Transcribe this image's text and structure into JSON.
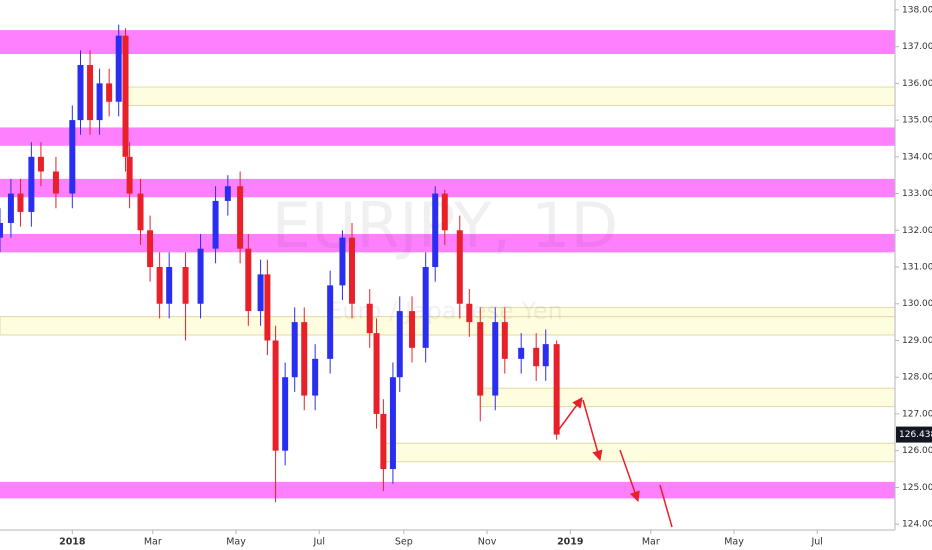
{
  "chart_data": {
    "type": "candlestick",
    "watermark_symbol": "EURJPY, 1D",
    "watermark_name": "Euro / Japanese Yen",
    "up_color": "#2a2ef0",
    "down_color": "#e8202a",
    "x": [
      -53,
      -45,
      -38,
      -30,
      -23,
      -12,
      0,
      6,
      13,
      20,
      27,
      34,
      39,
      42,
      50,
      57,
      64,
      71,
      83,
      94,
      105,
      114,
      123,
      129,
      138,
      143,
      149,
      156,
      163,
      170,
      178,
      189,
      198,
      205,
      218,
      223,
      228,
      235,
      240,
      249,
      259,
      266,
      273,
      284,
      291,
      299,
      310,
      317,
      329,
      340,
      347,
      355
    ],
    "open": [
      131.8,
      132.2,
      133.0,
      132.5,
      134.0,
      133.6,
      133.0,
      135.0,
      136.5,
      135.0,
      136.0,
      135.5,
      137.3,
      134.0,
      133.0,
      132.0,
      131.0,
      130.0,
      131.0,
      130.0,
      131.5,
      132.8,
      133.2,
      131.5,
      129.8,
      130.8,
      129.0,
      126.0,
      128.0,
      129.5,
      127.5,
      128.5,
      130.5,
      131.8,
      130.0,
      129.2,
      127.0,
      125.5,
      128.0,
      129.8,
      128.8,
      131.0,
      133.0,
      132.0,
      130.0,
      129.5,
      127.5,
      129.5,
      128.5,
      128.8,
      128.3,
      128.9
    ],
    "high": [
      132.6,
      133.4,
      133.4,
      134.4,
      134.4,
      134.0,
      135.4,
      136.9,
      136.9,
      136.4,
      136.4,
      137.6,
      137.5,
      134.4,
      133.4,
      132.4,
      131.4,
      131.4,
      131.4,
      131.9,
      133.2,
      133.5,
      133.6,
      131.9,
      131.2,
      131.2,
      129.4,
      128.4,
      129.9,
      129.9,
      128.9,
      130.9,
      132.0,
      132.2,
      130.4,
      129.6,
      127.4,
      128.4,
      130.2,
      130.2,
      131.4,
      133.2,
      133.1,
      132.4,
      130.4,
      129.9,
      129.9,
      129.9,
      129.2,
      129.2,
      129.3,
      129.0
    ],
    "low": [
      131.4,
      131.8,
      132.1,
      132.1,
      133.2,
      132.6,
      132.6,
      134.6,
      134.6,
      134.6,
      135.1,
      135.1,
      133.6,
      132.6,
      131.6,
      130.6,
      129.6,
      129.6,
      129.0,
      129.6,
      131.1,
      132.4,
      131.1,
      129.4,
      129.4,
      128.6,
      124.6,
      125.6,
      127.6,
      127.1,
      127.1,
      128.1,
      130.1,
      129.6,
      128.8,
      126.6,
      124.9,
      125.1,
      127.6,
      128.4,
      128.4,
      130.6,
      131.6,
      129.6,
      129.1,
      126.8,
      127.1,
      128.1,
      128.1,
      127.9,
      127.9,
      126.3
    ],
    "close": [
      132.2,
      133.0,
      132.5,
      134.0,
      133.6,
      133.0,
      135.0,
      136.5,
      135.0,
      136.0,
      135.5,
      137.3,
      134.0,
      133.0,
      132.0,
      131.0,
      130.0,
      131.0,
      130.0,
      131.5,
      132.8,
      133.2,
      131.5,
      129.8,
      130.8,
      129.0,
      126.0,
      128.0,
      129.5,
      127.5,
      128.5,
      130.5,
      131.8,
      130.0,
      129.2,
      127.0,
      125.5,
      128.0,
      129.8,
      128.8,
      131.0,
      133.0,
      132.0,
      130.0,
      129.5,
      127.5,
      129.5,
      128.5,
      128.8,
      128.3,
      128.9,
      126.438
    ],
    "last_price": 126.438,
    "zones": [
      {
        "low": 136.8,
        "high": 137.45,
        "color": "#ff80ff"
      },
      {
        "low": 135.4,
        "high": 135.9,
        "color": "#fffde0",
        "start": 39
      },
      {
        "low": 134.3,
        "high": 134.8,
        "color": "#ff80ff"
      },
      {
        "low": 132.9,
        "high": 133.4,
        "color": "#ff80ff"
      },
      {
        "low": 131.4,
        "high": 131.9,
        "color": "#ff80ff"
      },
      {
        "low": 129.45,
        "high": 129.9,
        "color": "#fffde0",
        "start": 299
      },
      {
        "low": 129.15,
        "high": 129.65,
        "color": "#fffde0"
      },
      {
        "low": 127.2,
        "high": 127.7,
        "color": "#fffde0",
        "start": 299
      },
      {
        "low": 125.7,
        "high": 126.2,
        "color": "#fffde0",
        "start": 229
      },
      {
        "low": 124.7,
        "high": 125.15,
        "color": "#ff80ff"
      }
    ],
    "xlim": [
      -53,
      603
    ],
    "ylim": [
      123.84,
      138.27
    ],
    "xticks": [
      {
        "value": 0,
        "label": "2018"
      },
      {
        "value": 59,
        "label": "Mar"
      },
      {
        "value": 120,
        "label": "May"
      },
      {
        "value": 181,
        "label": "Jul"
      },
      {
        "value": 243,
        "label": "Sep"
      },
      {
        "value": 304,
        "label": "Nov"
      },
      {
        "value": 365,
        "label": "2019"
      },
      {
        "value": 424,
        "label": "Mar"
      },
      {
        "value": 485,
        "label": "May"
      },
      {
        "value": 546,
        "label": "Jul"
      }
    ],
    "yticks": [
      {
        "value": 124,
        "label": "124.000"
      },
      {
        "value": 125,
        "label": "125.000"
      },
      {
        "value": 126,
        "label": "126.000"
      },
      {
        "value": 127,
        "label": "127.000"
      },
      {
        "value": 128,
        "label": "128.000"
      },
      {
        "value": 129,
        "label": "129.000"
      },
      {
        "value": 130,
        "label": "130.000"
      },
      {
        "value": 131,
        "label": "131.000"
      },
      {
        "value": 132,
        "label": "132.000"
      },
      {
        "value": 133,
        "label": "133.000"
      },
      {
        "value": 134,
        "label": "134.000"
      },
      {
        "value": 135,
        "label": "135.000"
      },
      {
        "value": 136,
        "label": "136.000"
      },
      {
        "value": 137,
        "label": "137.000"
      },
      {
        "value": 138,
        "label": "138.000"
      }
    ]
  }
}
